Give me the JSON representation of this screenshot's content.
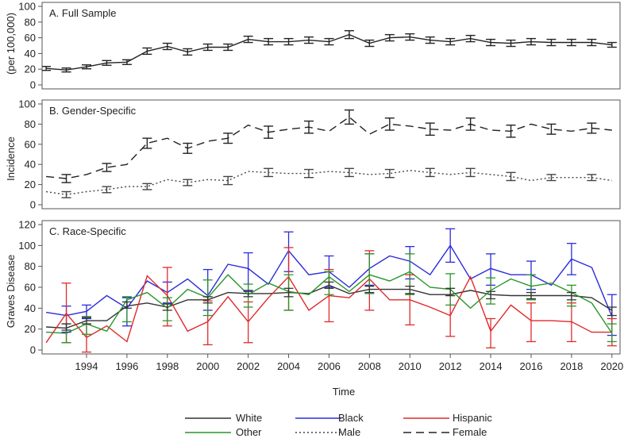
{
  "chart_data": {
    "type": "line",
    "x_label": "Time",
    "x_ticks": [
      1994,
      1996,
      1998,
      2000,
      2002,
      2004,
      2006,
      2008,
      2010,
      2012,
      2014,
      2016,
      2018,
      2020
    ],
    "x_range": [
      1991.8,
      2020.4
    ],
    "y_title_lines": [
      "(per 100,000)",
      "Incidence",
      "Graves Disease"
    ],
    "colors": {
      "White": "#333333",
      "Black": "#2b2bdb",
      "Hispanic": "#e02a2a",
      "Other": "#2a962a",
      "Male": "#444444",
      "Female": "#222222"
    },
    "panels": [
      {
        "title": "A. Full Sample",
        "ylim": [
          0,
          100
        ],
        "yticks": [
          0,
          20,
          40,
          60,
          80,
          100
        ],
        "series": [
          {
            "name": "Full Sample",
            "style": "solid",
            "color": "#222222",
            "errorbars": true,
            "x": [
              1992,
              1993,
              1994,
              1995,
              1996,
              1997,
              1998,
              1999,
              2000,
              2001,
              2002,
              2003,
              2004,
              2005,
              2006,
              2007,
              2008,
              2009,
              2010,
              2011,
              2012,
              2013,
              2014,
              2015,
              2016,
              2017,
              2018,
              2019,
              2020
            ],
            "y": [
              21,
              19,
              23,
              28,
              29,
              43,
              49,
              42,
              48,
              48,
              58,
              55,
              55,
              57,
              55,
              64,
              53,
              60,
              61,
              57,
              55,
              59,
              54,
              53,
              55,
              54,
              54,
              54,
              51
            ],
            "err": [
              2.5,
              2.5,
              2.5,
              3,
              3,
              4,
              4,
              4,
              4,
              4,
              4,
              4,
              4,
              4,
              4,
              5,
              4,
              4,
              4,
              4,
              4,
              4,
              4,
              4,
              4,
              4,
              4,
              4,
              3
            ]
          }
        ]
      },
      {
        "title": "B. Gender-Specific",
        "ylim": [
          0,
          100
        ],
        "yticks": [
          0,
          20,
          40,
          60,
          80,
          100
        ],
        "series": [
          {
            "name": "Female",
            "style": "dashed",
            "color": "#222222",
            "errorbars": true,
            "x": [
              1992,
              1993,
              1994,
              1995,
              1996,
              1997,
              1998,
              1999,
              2000,
              2001,
              2002,
              2003,
              2004,
              2005,
              2006,
              2007,
              2008,
              2009,
              2010,
              2011,
              2012,
              2013,
              2014,
              2015,
              2016,
              2017,
              2018,
              2019,
              2020
            ],
            "y": [
              28,
              26,
              30,
              37,
              40,
              61,
              66,
              56,
              63,
              66,
              79,
              72,
              75,
              77,
              73,
              87,
              70,
              80,
              78,
              75,
              74,
              80,
              74,
              73,
              80,
              75,
              73,
              76,
              74
            ],
            "err": [
              0,
              4,
              0,
              4,
              0,
              5,
              0,
              5,
              0,
              5,
              0,
              6,
              0,
              6,
              0,
              7,
              0,
              6,
              0,
              6,
              0,
              6,
              0,
              6,
              0,
              5,
              0,
              5,
              0
            ]
          },
          {
            "name": "Male",
            "style": "dotted",
            "color": "#444444",
            "errorbars": true,
            "x": [
              1992,
              1993,
              1994,
              1995,
              1996,
              1997,
              1998,
              1999,
              2000,
              2001,
              2002,
              2003,
              2004,
              2005,
              2006,
              2007,
              2008,
              2009,
              2010,
              2011,
              2012,
              2013,
              2014,
              2015,
              2016,
              2017,
              2018,
              2019,
              2020
            ],
            "y": [
              13,
              10,
              13,
              15,
              18,
              18,
              25,
              22,
              25,
              24,
              33,
              32,
              31,
              31,
              33,
              32,
              30,
              31,
              34,
              32,
              30,
              32,
              30,
              28,
              24,
              27,
              27,
              27,
              24
            ],
            "err": [
              0,
              3,
              0,
              3,
              0,
              3,
              0,
              3,
              0,
              4,
              0,
              4,
              0,
              4,
              0,
              4,
              0,
              4,
              0,
              4,
              0,
              4,
              0,
              4,
              0,
              3,
              0,
              3,
              0
            ]
          }
        ]
      },
      {
        "title": "C. Race-Specific",
        "ylim": [
          0,
          120
        ],
        "yticks": [
          0,
          20,
          40,
          60,
          80,
          100,
          120
        ],
        "series": [
          {
            "name": "White",
            "style": "solid",
            "color": "#333333",
            "errorbars": false,
            "x": [
              1992,
              1993,
              1994,
              1995,
              1996,
              1997,
              1998,
              1999,
              2000,
              2001,
              2002,
              2003,
              2004,
              2005,
              2006,
              2007,
              2008,
              2009,
              2010,
              2011,
              2012,
              2013,
              2014,
              2015,
              2016,
              2017,
              2018,
              2019,
              2020
            ],
            "y": [
              22,
              21,
              28,
              28,
              42,
              45,
              41,
              48,
              48,
              55,
              54,
              54,
              55,
              54,
              62,
              54,
              58,
              58,
              58,
              53,
              53,
              57,
              53,
              52,
              52,
              52,
              52,
              50,
              38
            ]
          },
          {
            "name": "Black",
            "style": "solid",
            "color": "#2b2bdb",
            "errorbars": false,
            "x": [
              1992,
              1993,
              1994,
              1995,
              1996,
              1997,
              1998,
              1999,
              2000,
              2001,
              2002,
              2003,
              2004,
              2005,
              2006,
              2007,
              2008,
              2009,
              2010,
              2011,
              2012,
              2013,
              2014,
              2015,
              2016,
              2017,
              2018,
              2019,
              2020
            ],
            "y": [
              36,
              33,
              37,
              52,
              40,
              66,
              55,
              68,
              52,
              82,
              78,
              63,
              95,
              72,
              75,
              60,
              78,
              90,
              85,
              72,
              100,
              68,
              78,
              72,
              72,
              62,
              87,
              79,
              32
            ]
          },
          {
            "name": "Hispanic",
            "style": "solid",
            "color": "#e02a2a",
            "errorbars": false,
            "x": [
              1992,
              1993,
              1994,
              1995,
              1996,
              1997,
              1998,
              1999,
              2000,
              2001,
              2002,
              2003,
              2004,
              2005,
              2006,
              2007,
              2008,
              2009,
              2010,
              2011,
              2012,
              2013,
              2014,
              2015,
              2016,
              2017,
              2018,
              2019,
              2020
            ],
            "y": [
              7,
              35,
              12,
              23,
              8,
              71,
              52,
              18,
              27,
              51,
              27,
              50,
              70,
              38,
              52,
              50,
              68,
              48,
              48,
              41,
              33,
              70,
              18,
              43,
              28,
              28,
              27,
              17,
              17
            ]
          },
          {
            "name": "Other",
            "style": "solid",
            "color": "#2a962a",
            "errorbars": false,
            "x": [
              1992,
              1993,
              1994,
              1995,
              1996,
              1997,
              1998,
              1999,
              2000,
              2001,
              2002,
              2003,
              2004,
              2005,
              2006,
              2007,
              2008,
              2009,
              2010,
              2011,
              2012,
              2013,
              2014,
              2015,
              2016,
              2017,
              2018,
              2019,
              2020
            ],
            "y": [
              17,
              16,
              25,
              18,
              48,
              55,
              40,
              58,
              50,
              72,
              53,
              64,
              56,
              53,
              70,
              56,
              72,
              66,
              75,
              60,
              58,
              40,
              57,
              68,
              61,
              64,
              55,
              45,
              16
            ]
          }
        ],
        "errorbar_groups": [
          {
            "name": "Black",
            "color": "#2b2bdb",
            "x": [
              1993,
              1994,
              1996,
              1998,
              2000,
              2002,
              2004,
              2006,
              2008,
              2010,
              2012,
              2014,
              2016,
              2018,
              2020
            ],
            "lo": [
              17,
              30,
              23,
              45,
              38,
              56,
              75,
              60,
              62,
              68,
              84,
              62,
              58,
              72,
              14
            ],
            "hi": [
              42,
              43,
              50,
              65,
              77,
              93,
              113,
              90,
              92,
              99,
              116,
              92,
              85,
              102,
              53
            ]
          },
          {
            "name": "Hispanic",
            "color": "#e02a2a",
            "x": [
              1993,
              1994,
              1998,
              2000,
              2002,
              2004,
              2006,
              2008,
              2010,
              2012,
              2014,
              2016,
              2018,
              2020
            ],
            "lo": [
              7,
              -2,
              23,
              5,
              7,
              38,
              27,
              38,
              24,
              13,
              2,
              8,
              8,
              4
            ],
            "hi": [
              64,
              25,
              79,
              47,
              46,
              98,
              77,
              95,
              72,
              52,
              30,
              45,
              45,
              30
            ]
          },
          {
            "name": "Other",
            "color": "#2a962a",
            "x": [
              1993,
              1994,
              1996,
              1998,
              2000,
              2002,
              2004,
              2006,
              2008,
              2010,
              2012,
              2014,
              2016,
              2018,
              2020
            ],
            "lo": [
              7,
              15,
              27,
              28,
              33,
              41,
              38,
              53,
              54,
              53,
              43,
              44,
              48,
              42,
              8
            ],
            "hi": [
              25,
              32,
              51,
              50,
              67,
              63,
              72,
              75,
              92,
              92,
              73,
              69,
              72,
              62,
              25
            ]
          },
          {
            "name": "White",
            "color": "#333333",
            "x": [
              1993,
              1994,
              1996,
              1998,
              2000,
              2002,
              2004,
              2006,
              2008,
              2010,
              2012,
              2014,
              2016,
              2018,
              2020
            ],
            "lo": [
              19,
              25,
              40,
              38,
              45,
              51,
              51,
              59,
              55,
              54,
              52,
              49,
              49,
              48,
              33
            ],
            "hi": [
              25,
              31,
              46,
              44,
              51,
              57,
              59,
              65,
              61,
              61,
              59,
              56,
              55,
              55,
              41
            ]
          }
        ]
      }
    ],
    "legend": [
      {
        "label": "White",
        "color": "#333333",
        "style": "solid"
      },
      {
        "label": "Black",
        "color": "#2b2bdb",
        "style": "solid"
      },
      {
        "label": "Hispanic",
        "color": "#e02a2a",
        "style": "solid"
      },
      {
        "label": "Other",
        "color": "#2a962a",
        "style": "solid"
      },
      {
        "label": "Male",
        "color": "#444444",
        "style": "dotted"
      },
      {
        "label": "Female",
        "color": "#222222",
        "style": "dashed"
      }
    ]
  }
}
